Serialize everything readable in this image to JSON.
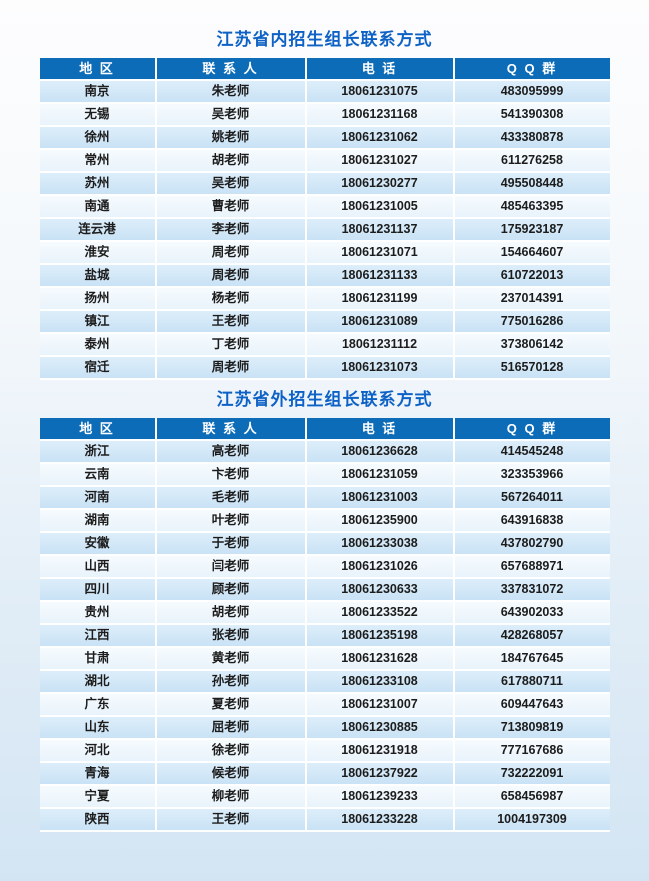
{
  "colors": {
    "title_text": "#0e62c6",
    "header_bg": "#0d6cb8",
    "header_text": "#ffffff",
    "row_odd_bg": "#cde5f6",
    "row_even_bg": "#eef6fc",
    "page_bg_top": "#fdfdfe",
    "page_bg_bottom": "#d3e5f3",
    "cell_text": "#1c1c1c"
  },
  "tables": [
    {
      "title": "江苏省内招生组长联系方式",
      "headers": [
        "地 区",
        "联 系 人",
        "电 话",
        "Q Q 群"
      ],
      "rows": [
        [
          "南京",
          "朱老师",
          "18061231075",
          "483095999"
        ],
        [
          "无锡",
          "吴老师",
          "18061231168",
          "541390308"
        ],
        [
          "徐州",
          "姚老师",
          "18061231062",
          "433380878"
        ],
        [
          "常州",
          "胡老师",
          "18061231027",
          "611276258"
        ],
        [
          "苏州",
          "吴老师",
          "18061230277",
          "495508448"
        ],
        [
          "南通",
          "曹老师",
          "18061231005",
          "485463395"
        ],
        [
          "连云港",
          "李老师",
          "18061231137",
          "175923187"
        ],
        [
          "淮安",
          "周老师",
          "18061231071",
          "154664607"
        ],
        [
          "盐城",
          "周老师",
          "18061231133",
          "610722013"
        ],
        [
          "扬州",
          "杨老师",
          "18061231199",
          "237014391"
        ],
        [
          "镇江",
          "王老师",
          "18061231089",
          "775016286"
        ],
        [
          "泰州",
          "丁老师",
          "18061231112",
          "373806142"
        ],
        [
          "宿迁",
          "周老师",
          "18061231073",
          "516570128"
        ]
      ]
    },
    {
      "title": "江苏省外招生组长联系方式",
      "headers": [
        "地 区",
        "联 系 人",
        "电 话",
        "Q Q 群"
      ],
      "rows": [
        [
          "浙江",
          "高老师",
          "18061236628",
          "414545248"
        ],
        [
          "云南",
          "卞老师",
          "18061231059",
          "323353966"
        ],
        [
          "河南",
          "毛老师",
          "18061231003",
          "567264011"
        ],
        [
          "湖南",
          "叶老师",
          "18061235900",
          "643916838"
        ],
        [
          "安徽",
          "于老师",
          "18061233038",
          "437802790"
        ],
        [
          "山西",
          "闫老师",
          "18061231026",
          "657688971"
        ],
        [
          "四川",
          "顾老师",
          "18061230633",
          "337831072"
        ],
        [
          "贵州",
          "胡老师",
          "18061233522",
          "643902033"
        ],
        [
          "江西",
          "张老师",
          "18061235198",
          "428268057"
        ],
        [
          "甘肃",
          "黄老师",
          "18061231628",
          "184767645"
        ],
        [
          "湖北",
          "孙老师",
          "18061233108",
          "617880711"
        ],
        [
          "广东",
          "夏老师",
          "18061231007",
          "609447643"
        ],
        [
          "山东",
          "屈老师",
          "18061230885",
          "713809819"
        ],
        [
          "河北",
          "徐老师",
          "18061231918",
          "777167686"
        ],
        [
          "青海",
          "候老师",
          "18061237922",
          "732222091"
        ],
        [
          "宁夏",
          "柳老师",
          "18061239233",
          "658456987"
        ],
        [
          "陕西",
          "王老师",
          "18061233228",
          "1004197309"
        ]
      ]
    }
  ]
}
